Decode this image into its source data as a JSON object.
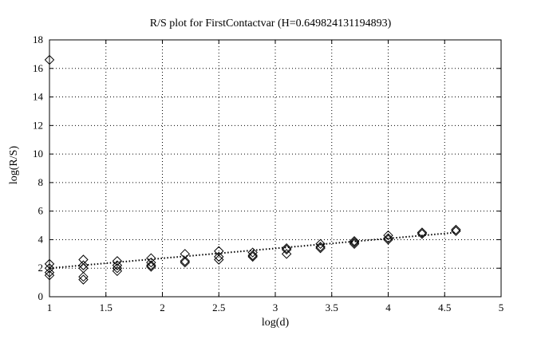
{
  "chart_data": {
    "type": "scatter",
    "title": "R/S plot for FirstContactvar (H=0.649824131194893)",
    "xlabel": "log(d)",
    "ylabel": "log(R/S)",
    "xlim": [
      1,
      5
    ],
    "ylim": [
      0,
      18
    ],
    "xticks": [
      "1",
      "1.5",
      "2",
      "2.5",
      "3",
      "3.5",
      "4",
      "4.5",
      "5"
    ],
    "yticks": [
      "0",
      "2",
      "4",
      "6",
      "8",
      "10",
      "12",
      "14",
      "16",
      "18"
    ],
    "grid": true,
    "marker": "diamond",
    "points": [
      [
        1.0,
        16.6
      ],
      [
        1.0,
        2.3
      ],
      [
        1.0,
        2.0
      ],
      [
        1.0,
        1.7
      ],
      [
        1.0,
        1.5
      ],
      [
        1.3,
        2.6
      ],
      [
        1.3,
        2.2
      ],
      [
        1.3,
        2.0
      ],
      [
        1.3,
        1.4
      ],
      [
        1.3,
        1.2
      ],
      [
        1.6,
        2.5
      ],
      [
        1.6,
        2.2
      ],
      [
        1.6,
        2.0
      ],
      [
        1.6,
        1.8
      ],
      [
        1.9,
        2.7
      ],
      [
        1.9,
        2.4
      ],
      [
        1.9,
        2.2
      ],
      [
        1.9,
        2.1
      ],
      [
        2.2,
        3.0
      ],
      [
        2.2,
        2.5
      ],
      [
        2.2,
        2.4
      ],
      [
        2.5,
        3.2
      ],
      [
        2.5,
        2.8
      ],
      [
        2.5,
        2.6
      ],
      [
        2.8,
        3.1
      ],
      [
        2.8,
        2.9
      ],
      [
        2.8,
        2.8
      ],
      [
        3.1,
        3.4
      ],
      [
        3.1,
        3.3
      ],
      [
        3.1,
        3.0
      ],
      [
        3.4,
        3.7
      ],
      [
        3.4,
        3.5
      ],
      [
        3.4,
        3.4
      ],
      [
        3.7,
        3.9
      ],
      [
        3.7,
        3.8
      ],
      [
        3.7,
        3.7
      ],
      [
        4.0,
        4.3
      ],
      [
        4.0,
        4.1
      ],
      [
        4.0,
        4.0
      ],
      [
        4.3,
        4.5
      ],
      [
        4.3,
        4.4
      ],
      [
        4.6,
        4.7
      ],
      [
        4.6,
        4.6
      ]
    ],
    "fit_line": {
      "style": "dotted",
      "x": [
        1.0,
        4.6
      ],
      "y": [
        2.0,
        4.5
      ]
    }
  }
}
